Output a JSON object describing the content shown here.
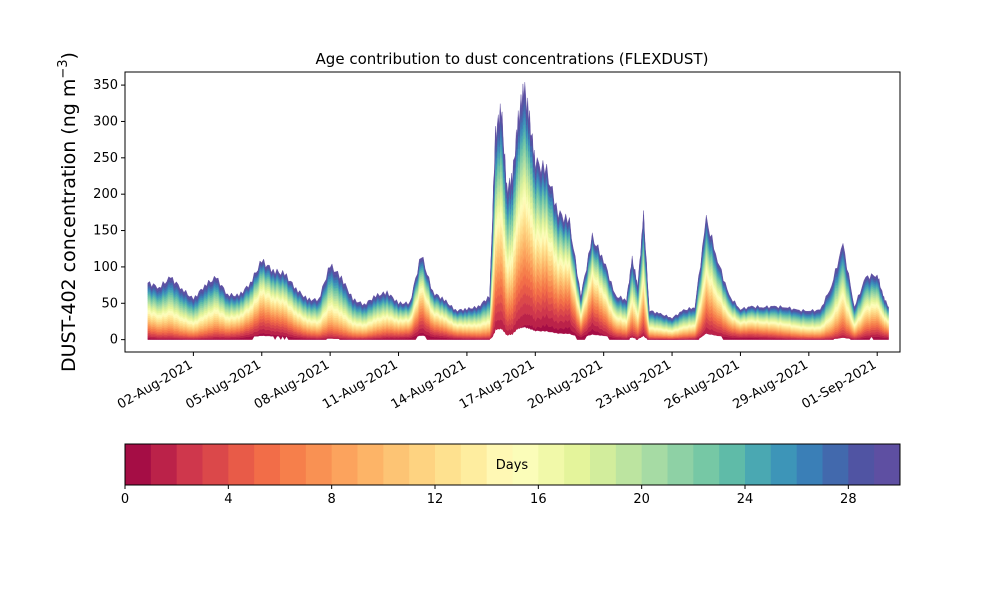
{
  "chart_data": {
    "type": "area",
    "title": "Age contribution to dust concentrations (FLEXDUST)",
    "ylabel_main": "DUST-402 concentration (ng m",
    "ylabel_unit_sup": "−3",
    "ylabel_close": ")",
    "xlabel": "",
    "x_range": [
      "2021-07-30",
      "2021-09-02"
    ],
    "ylim": [
      -17,
      368
    ],
    "y_ticks": [
      0,
      50,
      100,
      150,
      200,
      250,
      300,
      350
    ],
    "x_ticks": [
      {
        "date": "2021-08-02",
        "label": "02-Aug-2021"
      },
      {
        "date": "2021-08-05",
        "label": "05-Aug-2021"
      },
      {
        "date": "2021-08-08",
        "label": "08-Aug-2021"
      },
      {
        "date": "2021-08-11",
        "label": "11-Aug-2021"
      },
      {
        "date": "2021-08-14",
        "label": "14-Aug-2021"
      },
      {
        "date": "2021-08-17",
        "label": "17-Aug-2021"
      },
      {
        "date": "2021-08-20",
        "label": "20-Aug-2021"
      },
      {
        "date": "2021-08-23",
        "label": "23-Aug-2021"
      },
      {
        "date": "2021-08-26",
        "label": "26-Aug-2021"
      },
      {
        "date": "2021-08-29",
        "label": "29-Aug-2021"
      },
      {
        "date": "2021-09-01",
        "label": "01-Sep-2021"
      }
    ],
    "total_series": {
      "name": "",
      "points": [
        [
          "2021-07-31",
          78
        ],
        [
          "2021-07-31 12:00",
          72
        ],
        [
          "2021-08-01",
          85
        ],
        [
          "2021-08-01 12:00",
          70
        ],
        [
          "2021-08-02",
          55
        ],
        [
          "2021-08-02 12:00",
          75
        ],
        [
          "2021-08-03",
          85
        ],
        [
          "2021-08-03 12:00",
          62
        ],
        [
          "2021-08-04",
          60
        ],
        [
          "2021-08-04 12:00",
          78
        ],
        [
          "2021-08-05",
          108
        ],
        [
          "2021-08-05 12:00",
          95
        ],
        [
          "2021-08-06",
          90
        ],
        [
          "2021-08-06 12:00",
          70
        ],
        [
          "2021-08-07",
          55
        ],
        [
          "2021-08-07 12:00",
          55
        ],
        [
          "2021-08-08",
          102
        ],
        [
          "2021-08-08 12:00",
          85
        ],
        [
          "2021-08-09",
          55
        ],
        [
          "2021-08-09 12:00",
          48
        ],
        [
          "2021-08-10",
          60
        ],
        [
          "2021-08-10 12:00",
          65
        ],
        [
          "2021-08-11",
          50
        ],
        [
          "2021-08-11 12:00",
          50
        ],
        [
          "2021-08-12",
          117
        ],
        [
          "2021-08-12 12:00",
          65
        ],
        [
          "2021-08-13",
          55
        ],
        [
          "2021-08-13 12:00",
          40
        ],
        [
          "2021-08-14",
          42
        ],
        [
          "2021-08-14 12:00",
          45
        ],
        [
          "2021-08-15",
          60
        ],
        [
          "2021-08-15 06:00",
          280
        ],
        [
          "2021-08-15 12:00",
          320
        ],
        [
          "2021-08-15 18:00",
          205
        ],
        [
          "2021-08-16",
          225
        ],
        [
          "2021-08-16 06:00",
          300
        ],
        [
          "2021-08-16 12:00",
          350
        ],
        [
          "2021-08-16 18:00",
          300
        ],
        [
          "2021-08-17",
          245
        ],
        [
          "2021-08-17 12:00",
          230
        ],
        [
          "2021-08-18",
          175
        ],
        [
          "2021-08-18 12:00",
          160
        ],
        [
          "2021-08-19",
          60
        ],
        [
          "2021-08-19 12:00",
          140
        ],
        [
          "2021-08-20",
          110
        ],
        [
          "2021-08-20 12:00",
          60
        ],
        [
          "2021-08-21",
          55
        ],
        [
          "2021-08-21 06:00",
          110
        ],
        [
          "2021-08-21 12:00",
          75
        ],
        [
          "2021-08-21 18:00",
          170
        ],
        [
          "2021-08-22",
          40
        ],
        [
          "2021-08-22 12:00",
          35
        ],
        [
          "2021-08-23",
          30
        ],
        [
          "2021-08-23 12:00",
          40
        ],
        [
          "2021-08-24",
          45
        ],
        [
          "2021-08-24 12:00",
          165
        ],
        [
          "2021-08-25",
          110
        ],
        [
          "2021-08-25 12:00",
          60
        ],
        [
          "2021-08-26",
          42
        ],
        [
          "2021-08-26 12:00",
          45
        ],
        [
          "2021-08-27",
          45
        ],
        [
          "2021-08-27 12:00",
          45
        ],
        [
          "2021-08-28",
          45
        ],
        [
          "2021-08-28 12:00",
          40
        ],
        [
          "2021-08-29",
          40
        ],
        [
          "2021-08-29 12:00",
          40
        ],
        [
          "2021-08-30",
          75
        ],
        [
          "2021-08-30 12:00",
          130
        ],
        [
          "2021-08-31",
          45
        ],
        [
          "2021-08-31 12:00",
          85
        ],
        [
          "2021-09-01",
          90
        ],
        [
          "2021-09-01 06:00",
          60
        ],
        [
          "2021-09-01 12:00",
          45
        ]
      ]
    },
    "age_bins_days": [
      0,
      1,
      2,
      3,
      4,
      5,
      6,
      7,
      8,
      9,
      10,
      11,
      12,
      13,
      14,
      15,
      16,
      17,
      18,
      19,
      20,
      21,
      22,
      23,
      24,
      25,
      26,
      27,
      28,
      29,
      30
    ],
    "colorbar": {
      "label": "Days",
      "ticks": [
        0,
        4,
        8,
        12,
        16,
        20,
        24,
        28
      ],
      "range": [
        0,
        30
      ],
      "colormap": "Spectral",
      "colors": [
        "#a50d45",
        "#bb2249",
        "#cf374c",
        "#db484a",
        "#e85b48",
        "#f26d48",
        "#f67f4b",
        "#f99153",
        "#fca35d",
        "#fdb467",
        "#fdc474",
        "#fed381",
        "#fee18f",
        "#feed9f",
        "#fff8b4",
        "#fbfdb9",
        "#f1f9a9",
        "#e4f49b",
        "#d2ed9c",
        "#bce4a0",
        "#a6dba4",
        "#8ed1a5",
        "#76c8a5",
        "#5fbba8",
        "#4aa8b2",
        "#3d95b8",
        "#3a7fb7",
        "#4269ad",
        "#5054a3",
        "#5e4fa2"
      ]
    }
  }
}
